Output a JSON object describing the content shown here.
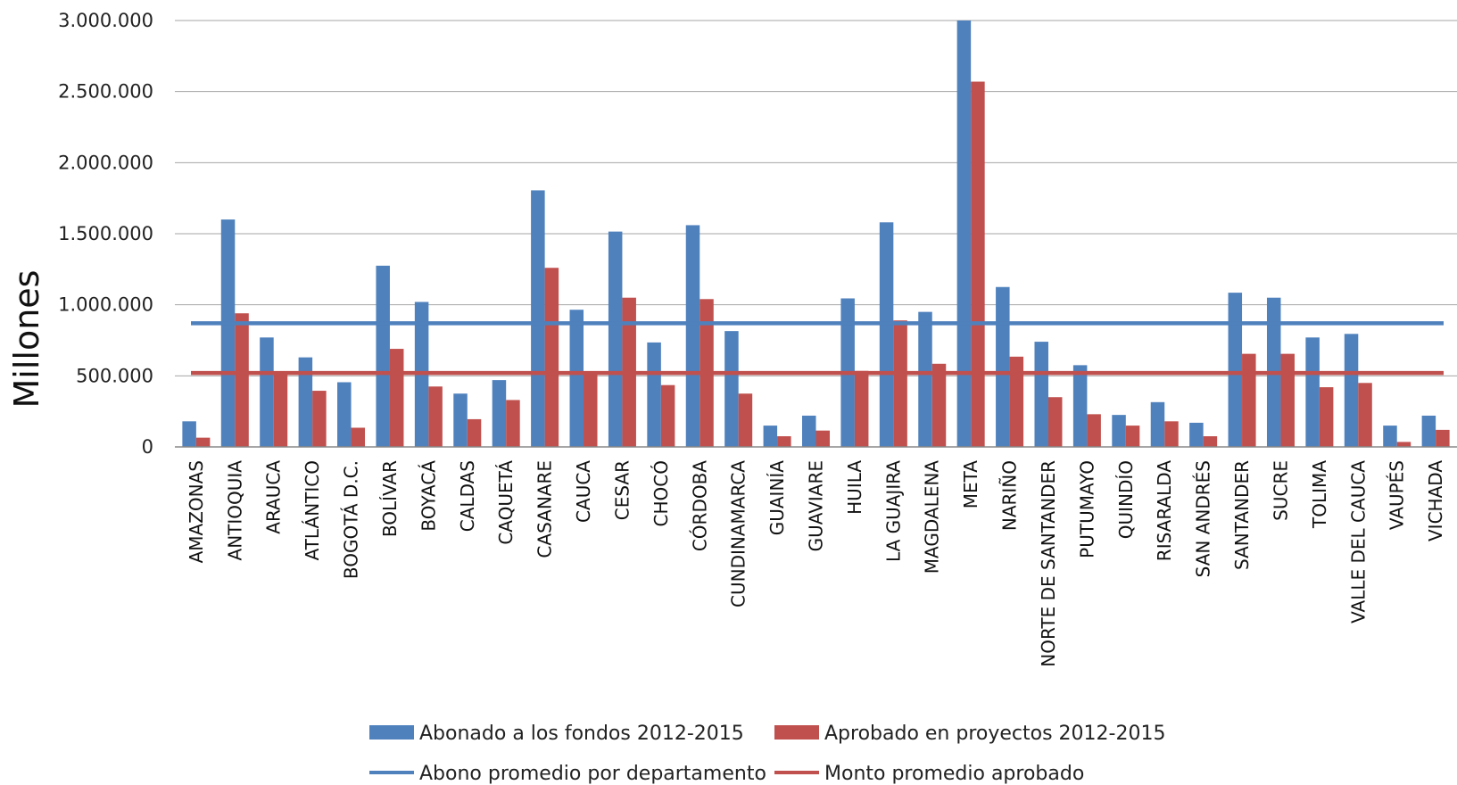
{
  "chart_data": {
    "type": "bar",
    "ylabel": "Millones",
    "xlabel": "",
    "title": "",
    "ylim": [
      0,
      3000000
    ],
    "yticks": [
      0,
      500000,
      1000000,
      1500000,
      2000000,
      2500000,
      3000000
    ],
    "ytick_labels": [
      "0",
      "500.000",
      "1.000.000",
      "1.500.000",
      "2.000.000",
      "2.500.000",
      "3.000.000"
    ],
    "grid": true,
    "legend_position": "bottom",
    "categories": [
      "AMAZONAS",
      "ANTIOQUIA",
      "ARAUCA",
      "ATLÁNTICO",
      "BOGOTÁ D.C.",
      "BOLÍVAR",
      "BOYACÁ",
      "CALDAS",
      "CAQUETÁ",
      "CASANARE",
      "CAUCA",
      "CESAR",
      "CHOCÓ",
      "CÓRDOBA",
      "CUNDINAMARCA",
      "GUAINÍA",
      "GUAVIARE",
      "HUILA",
      "LA GUAJIRA",
      "MAGDALENA",
      "META",
      "NARIÑO",
      "NORTE DE SANTANDER",
      "PUTUMAYO",
      "QUINDÍO",
      "RISARALDA",
      "SAN ANDRÉS",
      "SANTANDER",
      "SUCRE",
      "TOLIMA",
      "VALLE DEL CAUCA",
      "VAUPÉS",
      "VICHADA"
    ],
    "series": [
      {
        "name": "Abonado a los fondos 2012-2015",
        "color": "#4F81BD",
        "values": [
          180000,
          1600000,
          770000,
          630000,
          455000,
          1275000,
          1020000,
          375000,
          470000,
          1805000,
          965000,
          1515000,
          735000,
          1560000,
          815000,
          150000,
          220000,
          1045000,
          1580000,
          950000,
          3000000,
          1125000,
          740000,
          575000,
          225000,
          315000,
          170000,
          1085000,
          1050000,
          770000,
          795000,
          150000,
          220000
        ]
      },
      {
        "name": "Aprobado en proyectos 2012-2015",
        "color": "#C0504D",
        "values": [
          65000,
          940000,
          520000,
          395000,
          135000,
          690000,
          425000,
          195000,
          330000,
          1260000,
          520000,
          1050000,
          435000,
          1040000,
          375000,
          75000,
          115000,
          535000,
          890000,
          585000,
          2570000,
          635000,
          350000,
          230000,
          150000,
          180000,
          75000,
          655000,
          655000,
          420000,
          450000,
          35000,
          120000
        ]
      }
    ],
    "reference_lines": [
      {
        "name": "Abono promedio por departamento",
        "color": "#4F81BD",
        "value": 870000
      },
      {
        "name": "Monto promedio aprobado",
        "color": "#C0504D",
        "value": 520000
      }
    ]
  }
}
